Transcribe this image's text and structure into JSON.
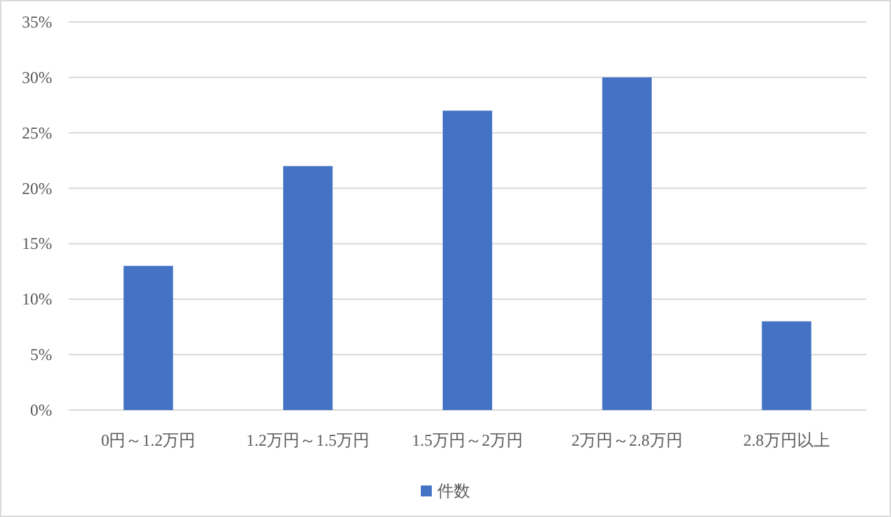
{
  "chart_data": {
    "type": "bar",
    "categories": [
      "0円～1.2万円",
      "1.2万円～1.5万円",
      "1.5万円～2万円",
      "2万円～2.8万円",
      "2.8万円以上"
    ],
    "series": [
      {
        "name": "件数",
        "color": "#4472c4",
        "values": [
          13,
          22,
          27,
          30,
          8
        ]
      }
    ],
    "ylim": [
      0,
      35
    ],
    "yticks": [
      {
        "value": 0,
        "label": "0%"
      },
      {
        "value": 5,
        "label": "5%"
      },
      {
        "value": 10,
        "label": "10%"
      },
      {
        "value": 15,
        "label": "15%"
      },
      {
        "value": 20,
        "label": "20%"
      },
      {
        "value": 25,
        "label": "25%"
      },
      {
        "value": 30,
        "label": "30%"
      },
      {
        "value": 35,
        "label": "35%"
      }
    ],
    "grid": "y",
    "legend": "bottom"
  }
}
